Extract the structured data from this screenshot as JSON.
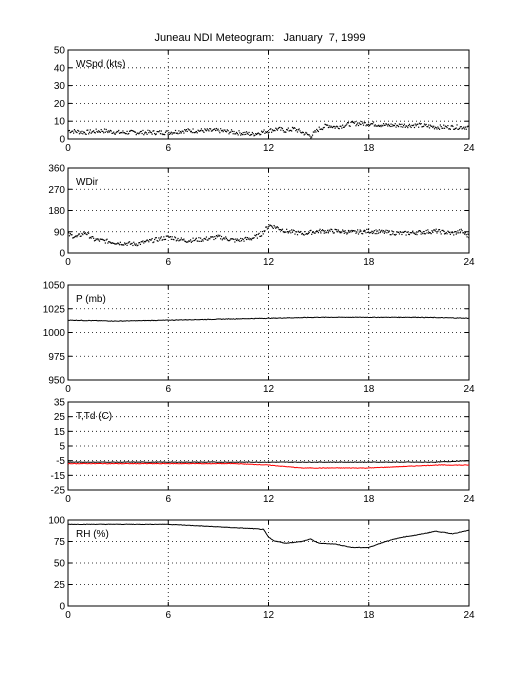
{
  "title": "Juneau NDI Meteogram:   January  7, 1999",
  "colors": {
    "black": "#000000",
    "red": "#ff0000"
  },
  "chart_data": [
    {
      "type": "scatter",
      "label": "WSpd (kts)",
      "xlim": [
        0,
        24
      ],
      "xticks": [
        0,
        6,
        12,
        18,
        24
      ],
      "ylim": [
        0,
        50
      ],
      "yticks": [
        0,
        10,
        20,
        30,
        40,
        50
      ],
      "grid": true,
      "series": [
        {
          "color": "#000000",
          "x": [
            0,
            1,
            2,
            3,
            4,
            5,
            6,
            7,
            8,
            9,
            10,
            11,
            11.5,
            12,
            12.5,
            13,
            13.5,
            14,
            14.5,
            15,
            15.5,
            16,
            17,
            18,
            19,
            20,
            21,
            22,
            23,
            24
          ],
          "y": [
            5,
            4,
            5,
            4,
            4,
            4,
            4,
            5,
            5,
            5,
            4,
            3,
            4,
            5,
            6,
            5,
            6,
            4,
            2,
            6,
            8,
            7,
            9,
            9,
            8,
            8,
            8,
            7,
            7,
            7
          ]
        }
      ]
    },
    {
      "type": "scatter",
      "label": "WDir",
      "xlim": [
        0,
        24
      ],
      "xticks": [
        0,
        6,
        12,
        18,
        24
      ],
      "ylim": [
        0,
        360
      ],
      "yticks": [
        0,
        90,
        180,
        270,
        360
      ],
      "grid": true,
      "series": [
        {
          "color": "#000000",
          "x": [
            0,
            0.5,
            1,
            1.5,
            2,
            3,
            4,
            5,
            6,
            7,
            8,
            9,
            10,
            11,
            11.5,
            12,
            12.5,
            13,
            14,
            15,
            16,
            17,
            18,
            19,
            20,
            21,
            22,
            23,
            23.5,
            24
          ],
          "y": [
            80,
            70,
            90,
            60,
            55,
            45,
            40,
            55,
            70,
            55,
            60,
            70,
            55,
            65,
            80,
            120,
            110,
            95,
            85,
            95,
            95,
            90,
            95,
            90,
            85,
            90,
            95,
            85,
            95,
            70
          ]
        }
      ]
    },
    {
      "type": "line",
      "label": "P (mb)",
      "xlim": [
        0,
        24
      ],
      "xticks": [
        0,
        6,
        12,
        18,
        24
      ],
      "ylim": [
        950,
        1050
      ],
      "yticks": [
        950,
        975,
        1000,
        1025,
        1050
      ],
      "grid": true,
      "series": [
        {
          "color": "#000000",
          "x": [
            0,
            3,
            6,
            9,
            12,
            15,
            18,
            21,
            24
          ],
          "y": [
            1013,
            1012,
            1013,
            1014,
            1015,
            1016,
            1016,
            1016,
            1015
          ]
        }
      ]
    },
    {
      "type": "line",
      "label": "T,Td (C)",
      "xlim": [
        0,
        24
      ],
      "xticks": [
        0,
        6,
        12,
        18,
        24
      ],
      "ylim": [
        -25,
        35
      ],
      "yticks": [
        -25,
        -15,
        -5,
        5,
        15,
        25,
        35
      ],
      "grid": true,
      "series": [
        {
          "color": "#000000",
          "x": [
            0,
            2,
            4,
            6,
            8,
            10,
            12,
            14,
            16,
            18,
            20,
            22,
            24
          ],
          "y": [
            -6,
            -6,
            -6,
            -6,
            -6,
            -6,
            -6,
            -6,
            -6,
            -6,
            -6,
            -6,
            -5
          ]
        },
        {
          "color": "#ff0000",
          "x": [
            0,
            2,
            4,
            6,
            8,
            10,
            12,
            13,
            14,
            16,
            18,
            20,
            22,
            24
          ],
          "y": [
            -7,
            -7,
            -7,
            -7,
            -7,
            -7,
            -8,
            -9,
            -10,
            -10,
            -10,
            -9,
            -8,
            -8
          ]
        }
      ]
    },
    {
      "type": "line",
      "label": "RH (%)",
      "xlim": [
        0,
        24
      ],
      "xticks": [
        0,
        6,
        12,
        18,
        24
      ],
      "ylim": [
        0,
        100
      ],
      "yticks": [
        0,
        25,
        50,
        75,
        100
      ],
      "grid": true,
      "series": [
        {
          "color": "#000000",
          "x": [
            0,
            2,
            4,
            6,
            7,
            8,
            9,
            10,
            11,
            11.7,
            12,
            12.3,
            13,
            14,
            14.5,
            15,
            16,
            17,
            18,
            19,
            20,
            21,
            22,
            23,
            24
          ],
          "y": [
            95,
            95,
            95,
            95,
            94,
            93,
            92,
            91,
            90,
            89,
            80,
            76,
            73,
            75,
            78,
            73,
            72,
            68,
            68,
            75,
            80,
            83,
            87,
            84,
            88
          ]
        }
      ]
    }
  ]
}
